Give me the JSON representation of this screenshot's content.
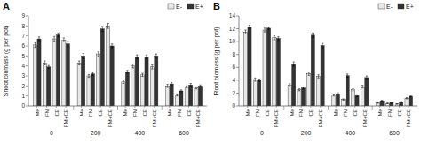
{
  "chart_data": [
    {
      "type": "bar",
      "title": "A",
      "y_label": "Shoot biomass (g per pot)",
      "categories": [
        "Me",
        "FM",
        "CE",
        "FM+CE",
        "Me",
        "FM",
        "CE",
        "FM+CE",
        "Me",
        "FM",
        "CE",
        "FM+CE",
        "Me",
        "FM",
        "CE",
        "FM+CE"
      ],
      "groups": [
        "0",
        "200",
        "400",
        "600"
      ],
      "series": [
        {
          "name": "E-",
          "color": "#e8e8e8",
          "values": [
            6.1,
            4.3,
            6.7,
            6.6,
            4.3,
            3.0,
            5.2,
            8.0,
            2.4,
            4.0,
            3.1,
            3.9,
            2.0,
            1.1,
            1.9,
            1.8
          ],
          "errors": [
            0.25,
            0.2,
            0.25,
            0.2,
            0.2,
            0.15,
            0.2,
            0.25,
            0.15,
            0.2,
            0.15,
            0.2,
            0.15,
            0.1,
            0.1,
            0.1
          ]
        },
        {
          "name": "E+",
          "color": "#333333",
          "values": [
            6.7,
            3.9,
            7.1,
            6.2,
            5.0,
            3.2,
            7.7,
            6.0,
            3.4,
            4.9,
            4.9,
            5.0,
            2.2,
            1.5,
            2.1,
            2.0
          ],
          "errors": [
            0.2,
            0.15,
            0.2,
            0.25,
            0.25,
            0.15,
            0.25,
            0.2,
            0.15,
            0.2,
            0.2,
            0.2,
            0.15,
            0.1,
            0.15,
            0.1
          ]
        }
      ],
      "ylim": [
        0,
        9
      ],
      "yticks": [
        0,
        1,
        2,
        3,
        4,
        5,
        6,
        7,
        8,
        9
      ],
      "legend": "upper right"
    },
    {
      "type": "bar",
      "title": "B",
      "y_label": "Root biomass (g per pot)",
      "categories": [
        "Me",
        "FM",
        "CE",
        "FM+CE",
        "Me",
        "FM",
        "CE",
        "FM+CE",
        "Me",
        "FM",
        "CE",
        "FM+CE",
        "Me",
        "FM",
        "CE",
        "FM+CE"
      ],
      "groups": [
        "0",
        "200",
        "400",
        "600"
      ],
      "series": [
        {
          "name": "E-",
          "color": "#e8e8e8",
          "values": [
            11.5,
            4.1,
            11.8,
            10.6,
            3.2,
            2.5,
            5.0,
            4.6,
            1.7,
            1.0,
            2.5,
            3.0,
            0.5,
            0.4,
            0.3,
            1.2
          ],
          "errors": [
            0.3,
            0.25,
            0.3,
            0.3,
            0.25,
            0.15,
            0.25,
            0.25,
            0.15,
            0.1,
            0.15,
            0.2,
            0.08,
            0.05,
            0.05,
            0.1
          ]
        },
        {
          "name": "E+",
          "color": "#333333",
          "values": [
            12.3,
            4.0,
            12.1,
            10.5,
            6.5,
            2.8,
            11.0,
            9.4,
            1.9,
            4.7,
            1.6,
            4.4,
            0.8,
            0.5,
            0.6,
            1.5
          ],
          "errors": [
            0.25,
            0.2,
            0.2,
            0.25,
            0.35,
            0.15,
            0.35,
            0.35,
            0.15,
            0.25,
            0.15,
            0.25,
            0.08,
            0.05,
            0.08,
            0.1
          ]
        }
      ],
      "ylim": [
        0,
        14
      ],
      "yticks": [
        0,
        2,
        4,
        6,
        8,
        10,
        12,
        14
      ],
      "legend": "upper right"
    }
  ]
}
